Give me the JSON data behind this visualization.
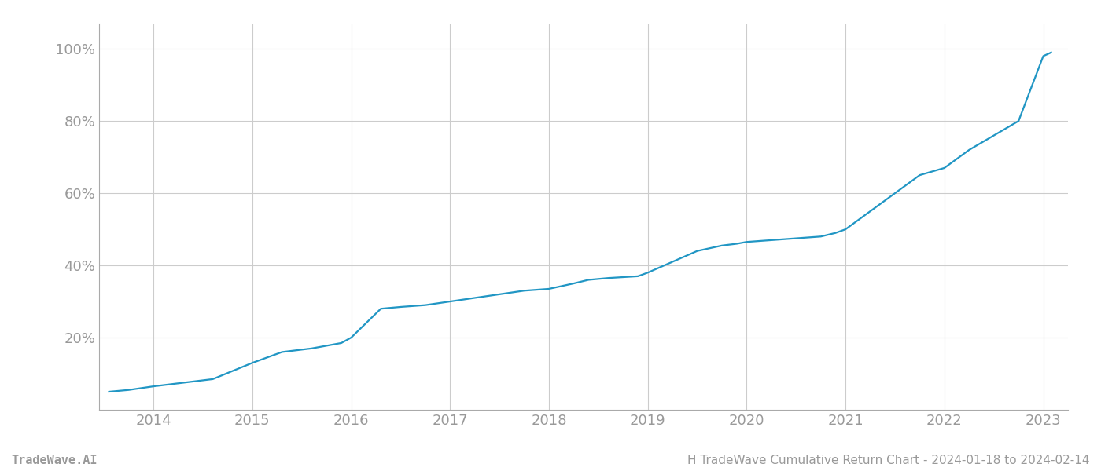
{
  "title": "",
  "footer_left": "TradeWave.AI",
  "footer_right": "H TradeWave Cumulative Return Chart - 2024-01-18 to 2024-02-14",
  "line_color": "#2196c4",
  "background_color": "#ffffff",
  "grid_color": "#cccccc",
  "x_years": [
    2014,
    2015,
    2016,
    2017,
    2018,
    2019,
    2020,
    2021,
    2022,
    2023
  ],
  "x_data": [
    2013.55,
    2013.75,
    2014.0,
    2014.3,
    2014.6,
    2015.0,
    2015.3,
    2015.6,
    2015.9,
    2016.0,
    2016.15,
    2016.3,
    2016.5,
    2016.75,
    2017.0,
    2017.25,
    2017.5,
    2017.75,
    2018.0,
    2018.25,
    2018.4,
    2018.6,
    2018.9,
    2019.0,
    2019.25,
    2019.5,
    2019.75,
    2019.9,
    2020.0,
    2020.25,
    2020.5,
    2020.75,
    2020.9,
    2021.0,
    2021.25,
    2021.5,
    2021.75,
    2022.0,
    2022.25,
    2022.5,
    2022.75,
    2023.0,
    2023.08
  ],
  "y_data": [
    5,
    5.5,
    6.5,
    7.5,
    8.5,
    13,
    16,
    17,
    18.5,
    20,
    24,
    28,
    28.5,
    29,
    30,
    31,
    32,
    33,
    33.5,
    35,
    36,
    36.5,
    37,
    38,
    41,
    44,
    45.5,
    46,
    46.5,
    47,
    47.5,
    48,
    49,
    50,
    55,
    60,
    65,
    67,
    72,
    76,
    80,
    98,
    99
  ],
  "ylim": [
    0,
    107
  ],
  "yticks": [
    20,
    40,
    60,
    80,
    100
  ],
  "ytick_labels": [
    "20%",
    "40%",
    "60%",
    "80%",
    "100%"
  ],
  "xlim": [
    2013.45,
    2023.25
  ],
  "line_width": 1.6,
  "footer_fontsize": 11,
  "tick_fontsize": 13,
  "tick_color": "#999999",
  "spine_color": "#aaaaaa"
}
